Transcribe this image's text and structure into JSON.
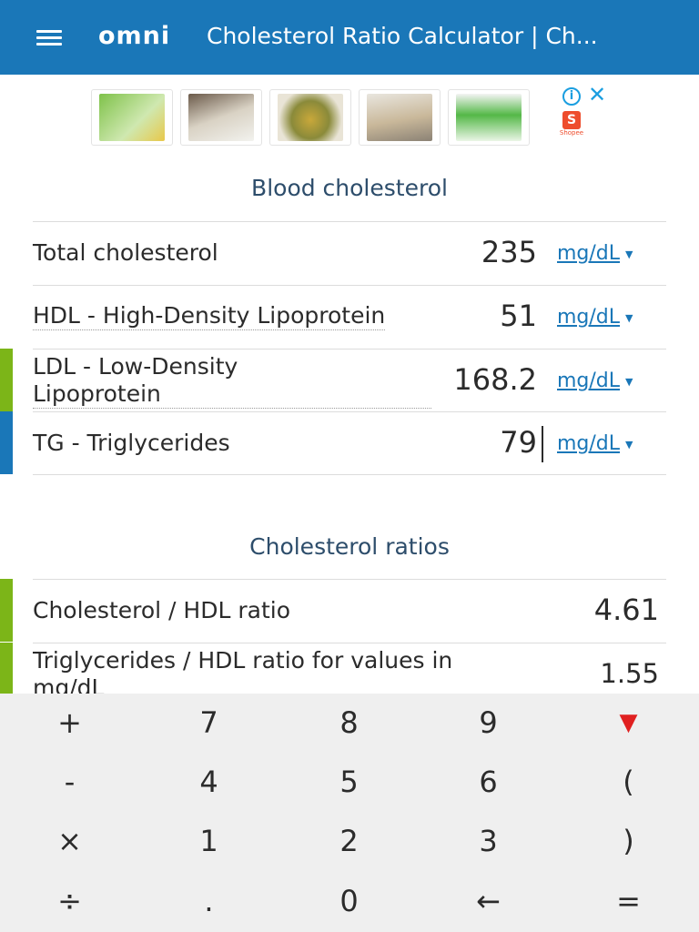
{
  "header": {
    "logo": "omni",
    "title": "Cholesterol Ratio Calculator | Ch..."
  },
  "ad": {
    "info_icon": "info-icon",
    "close_icon": "close-icon",
    "brand": "Shopee"
  },
  "blood": {
    "title": "Blood cholesterol",
    "rows": [
      {
        "label": "Total cholesterol",
        "value": "235",
        "unit": "mg/dL"
      },
      {
        "label": "HDL - High-Density Lipoprotein",
        "value": "51",
        "unit": "mg/dL"
      },
      {
        "label_line1": "LDL - Low-Density",
        "label_line2": "Lipoprotein",
        "value": "168.2",
        "unit": "mg/dL"
      },
      {
        "label": "TG - Triglycerides",
        "value": "79",
        "unit": "mg/dL"
      }
    ]
  },
  "ratios": {
    "title": "Cholesterol ratios",
    "rows": [
      {
        "label": "Cholesterol / HDL ratio",
        "value": "4.61"
      },
      {
        "label_line1": "Triglycerides / HDL ratio for values in",
        "label_line2": "mg/dL",
        "value": "1.55"
      }
    ]
  },
  "keypad": {
    "keys": [
      [
        "+",
        "7",
        "8",
        "9",
        "▼"
      ],
      [
        "-",
        "4",
        "5",
        "6",
        "("
      ],
      [
        "×",
        "1",
        "2",
        "3",
        ")"
      ],
      [
        "÷",
        ".",
        "0",
        "←",
        "="
      ]
    ]
  },
  "colors": {
    "header": "#1a77b8",
    "accent_green": "#7cb518",
    "accent_blue": "#1a77b8",
    "link": "#1a77b8",
    "key_down": "#e02020"
  }
}
